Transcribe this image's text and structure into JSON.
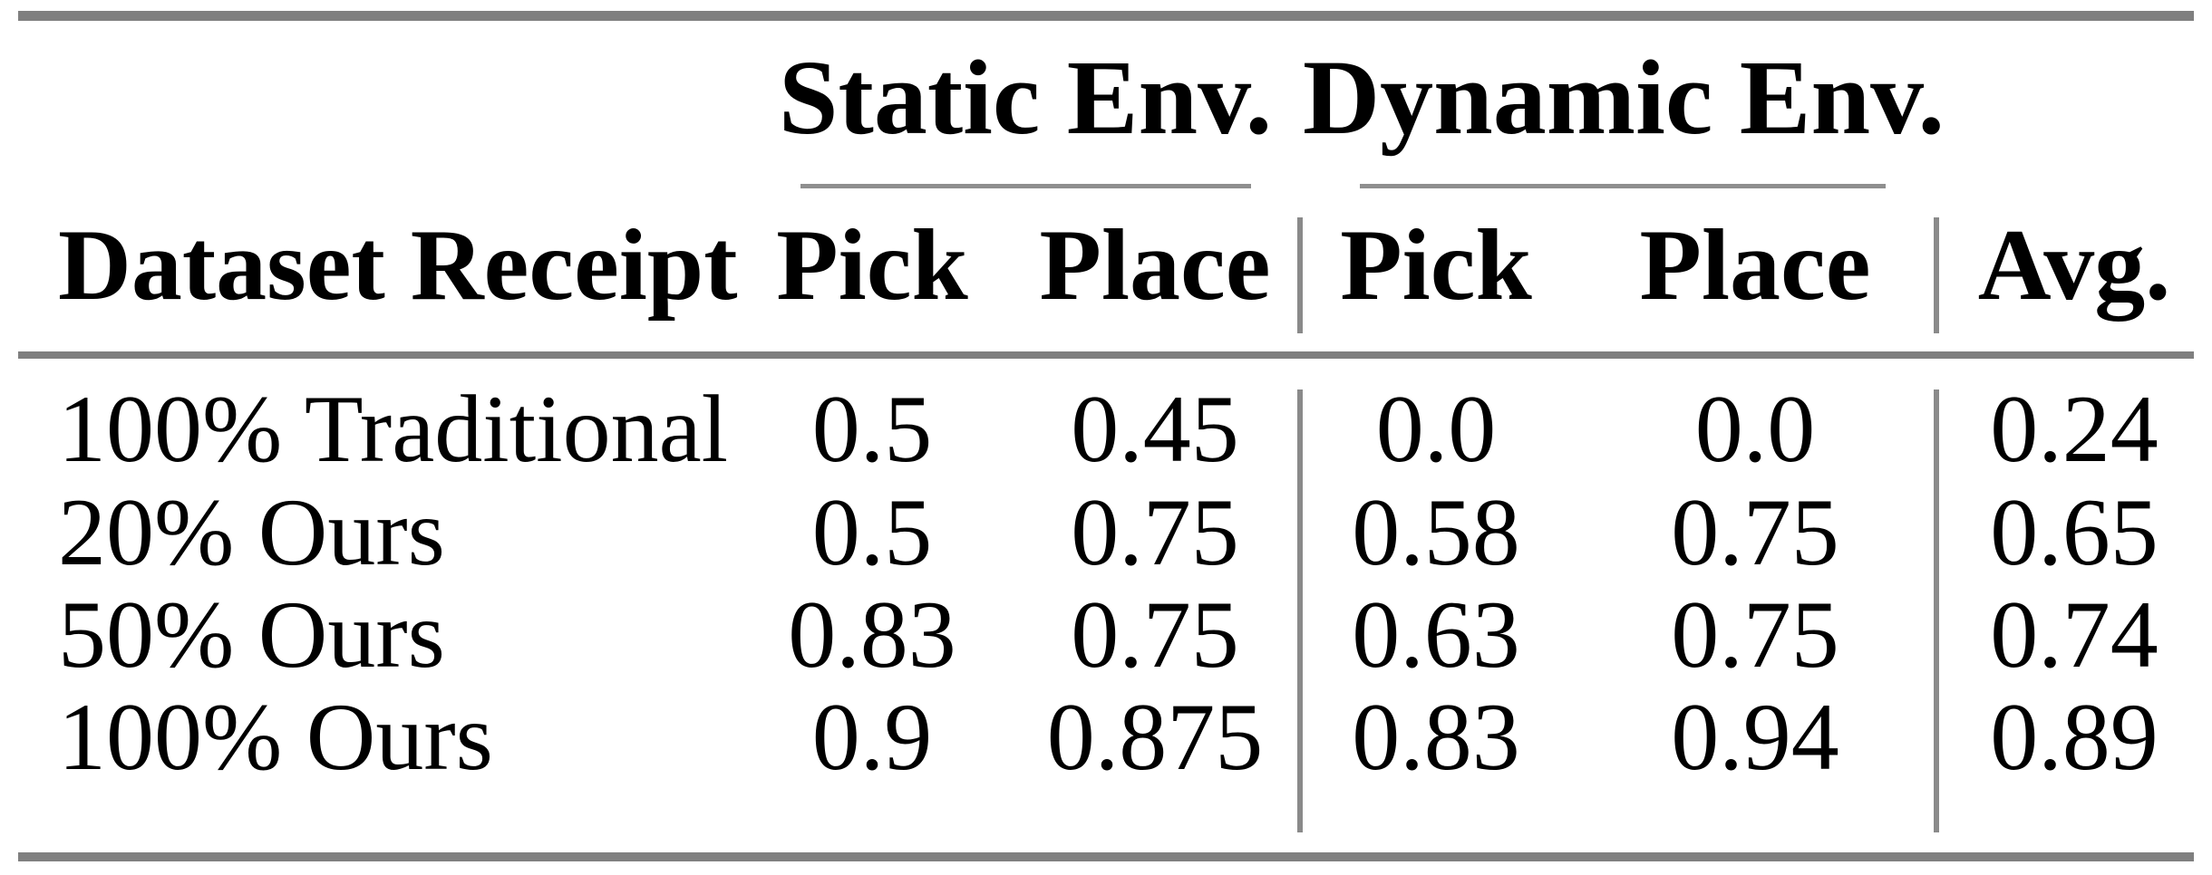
{
  "table": {
    "group_header": {
      "static": "Static Env.",
      "dynamic": "Dynamic Env."
    },
    "columns": {
      "dataset": "Dataset Receipt",
      "static_pick": "Pick",
      "static_place": "Place",
      "dynamic_pick": "Pick",
      "dynamic_place": "Place",
      "avg": "Avg."
    },
    "rows": [
      {
        "label": "100% Traditional",
        "cells": [
          "0.5",
          "0.45",
          "0.0",
          "0.0",
          "0.24"
        ]
      },
      {
        "label": "20% Ours",
        "cells": [
          "0.5",
          "0.75",
          "0.58",
          "0.75",
          "0.65"
        ]
      },
      {
        "label": "50% Ours",
        "cells": [
          "0.83",
          "0.75",
          "0.63",
          "0.75",
          "0.74"
        ]
      },
      {
        "label": "100% Ours",
        "cells": [
          "0.9",
          "0.875",
          "0.83",
          "0.94",
          "0.89"
        ]
      }
    ]
  },
  "colors": {
    "rule_gray": "#7f7f7f",
    "divider_gray": "#8a8a8a",
    "text": "#000000",
    "background": "#ffffff"
  }
}
